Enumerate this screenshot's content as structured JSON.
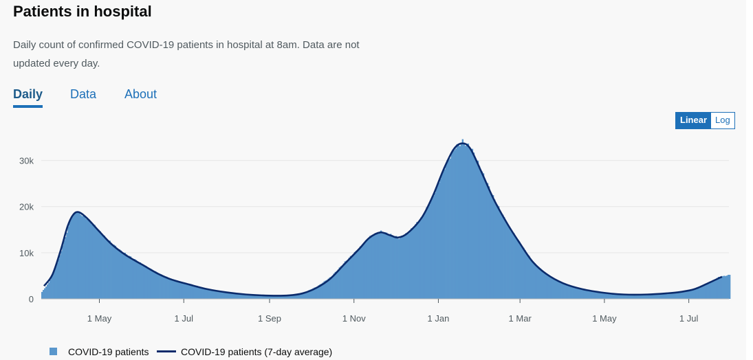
{
  "header": {
    "title": "Patients in hospital",
    "description": "Daily count of confirmed COVID-19 patients in hospital at 8am. Data are not updated every day."
  },
  "tabs": [
    {
      "label": "Daily",
      "active": true
    },
    {
      "label": "Data",
      "active": false
    },
    {
      "label": "About",
      "active": false
    }
  ],
  "scale_toggle": {
    "linear_label": "Linear",
    "log_label": "Log",
    "selected": "Linear"
  },
  "colors": {
    "bars": "#5a97cc",
    "line": "#0b2b6b",
    "accent": "#1d70b8",
    "grid": "#e6e6e6"
  },
  "chart_data": {
    "type": "bar",
    "xlabel": "",
    "ylabel": "",
    "ylim": [
      0,
      35000
    ],
    "yticks": [
      0,
      10000,
      20000,
      30000
    ],
    "ytick_labels": [
      "0",
      "10k",
      "20k",
      "30k"
    ],
    "x_range": [
      "2020-03-20",
      "2021-07-30"
    ],
    "xticks": [
      {
        "date": "2020-05-01",
        "label": "1 May"
      },
      {
        "date": "2020-07-01",
        "label": "1 Jul"
      },
      {
        "date": "2020-09-01",
        "label": "1 Sep"
      },
      {
        "date": "2020-11-01",
        "label": "1 Nov"
      },
      {
        "date": "2021-01-01",
        "label": "1 Jan"
      },
      {
        "date": "2021-03-01",
        "label": "1 Mar"
      },
      {
        "date": "2021-05-01",
        "label": "1 May"
      },
      {
        "date": "2021-07-01",
        "label": "1 Jul"
      }
    ],
    "grid": true,
    "legend_position": "bottom-left",
    "series": [
      {
        "name": "COVID-19 patients",
        "kind": "bar",
        "points": [
          [
            "2020-03-20",
            1500
          ],
          [
            "2020-03-25",
            3500
          ],
          [
            "2020-04-01",
            8500
          ],
          [
            "2020-04-06",
            13500
          ],
          [
            "2020-04-10",
            17500
          ],
          [
            "2020-04-14",
            18900
          ],
          [
            "2020-04-20",
            17800
          ],
          [
            "2020-04-27",
            15800
          ],
          [
            "2020-05-05",
            13200
          ],
          [
            "2020-05-15",
            10600
          ],
          [
            "2020-05-25",
            8700
          ],
          [
            "2020-06-05",
            6700
          ],
          [
            "2020-06-15",
            5100
          ],
          [
            "2020-06-25",
            3900
          ],
          [
            "2020-07-10",
            2800
          ],
          [
            "2020-07-20",
            1900
          ],
          [
            "2020-08-01",
            1300
          ],
          [
            "2020-08-15",
            900
          ],
          [
            "2020-09-01",
            700
          ],
          [
            "2020-09-15",
            800
          ],
          [
            "2020-09-25",
            1300
          ],
          [
            "2020-10-05",
            2700
          ],
          [
            "2020-10-15",
            4800
          ],
          [
            "2020-10-25",
            8000
          ],
          [
            "2020-11-05",
            11200
          ],
          [
            "2020-11-12",
            13500
          ],
          [
            "2020-11-20",
            14600
          ],
          [
            "2020-11-27",
            13900
          ],
          [
            "2020-12-03",
            13200
          ],
          [
            "2020-12-10",
            14400
          ],
          [
            "2020-12-20",
            17800
          ],
          [
            "2020-12-28",
            22500
          ],
          [
            "2021-01-05",
            28500
          ],
          [
            "2021-01-12",
            32600
          ],
          [
            "2021-01-18",
            34100
          ],
          [
            "2021-01-24",
            32800
          ],
          [
            "2021-02-01",
            27500
          ],
          [
            "2021-02-10",
            21500
          ],
          [
            "2021-02-20",
            15800
          ],
          [
            "2021-03-01",
            11800
          ],
          [
            "2021-03-10",
            7900
          ],
          [
            "2021-03-20",
            5200
          ],
          [
            "2021-04-01",
            3300
          ],
          [
            "2021-04-15",
            2100
          ],
          [
            "2021-05-01",
            1300
          ],
          [
            "2021-05-15",
            950
          ],
          [
            "2021-06-01",
            950
          ],
          [
            "2021-06-15",
            1200
          ],
          [
            "2021-06-25",
            1500
          ],
          [
            "2021-07-05",
            2200
          ],
          [
            "2021-07-15",
            3500
          ],
          [
            "2021-07-22",
            4700
          ],
          [
            "2021-07-30",
            5200
          ]
        ]
      },
      {
        "name": "COVID-19 patients (7-day average)",
        "kind": "line",
        "points": [
          [
            "2020-03-22",
            2800
          ],
          [
            "2020-03-28",
            5200
          ],
          [
            "2020-04-03",
            10500
          ],
          [
            "2020-04-08",
            15700
          ],
          [
            "2020-04-12",
            18200
          ],
          [
            "2020-04-16",
            18800
          ],
          [
            "2020-04-22",
            17500
          ],
          [
            "2020-05-01",
            14600
          ],
          [
            "2020-05-10",
            11800
          ],
          [
            "2020-05-20",
            9500
          ],
          [
            "2020-06-01",
            7400
          ],
          [
            "2020-06-12",
            5500
          ],
          [
            "2020-06-22",
            4200
          ],
          [
            "2020-07-05",
            3100
          ],
          [
            "2020-07-18",
            2100
          ],
          [
            "2020-08-01",
            1400
          ],
          [
            "2020-08-15",
            950
          ],
          [
            "2020-09-01",
            700
          ],
          [
            "2020-09-15",
            750
          ],
          [
            "2020-09-25",
            1200
          ],
          [
            "2020-10-05",
            2400
          ],
          [
            "2020-10-15",
            4400
          ],
          [
            "2020-10-25",
            7500
          ],
          [
            "2020-11-05",
            10900
          ],
          [
            "2020-11-12",
            13200
          ],
          [
            "2020-11-20",
            14400
          ],
          [
            "2020-11-27",
            13800
          ],
          [
            "2020-12-03",
            13300
          ],
          [
            "2020-12-10",
            14300
          ],
          [
            "2020-12-20",
            17600
          ],
          [
            "2020-12-28",
            22300
          ],
          [
            "2021-01-05",
            28200
          ],
          [
            "2021-01-12",
            32400
          ],
          [
            "2021-01-18",
            33700
          ],
          [
            "2021-01-24",
            32600
          ],
          [
            "2021-02-01",
            27600
          ],
          [
            "2021-02-10",
            21600
          ],
          [
            "2021-02-20",
            16200
          ],
          [
            "2021-03-01",
            12000
          ],
          [
            "2021-03-10",
            8100
          ],
          [
            "2021-03-20",
            5400
          ],
          [
            "2021-04-01",
            3400
          ],
          [
            "2021-04-15",
            2100
          ],
          [
            "2021-05-01",
            1300
          ],
          [
            "2021-05-15",
            950
          ],
          [
            "2021-06-01",
            950
          ],
          [
            "2021-06-15",
            1200
          ],
          [
            "2021-06-25",
            1500
          ],
          [
            "2021-07-05",
            2100
          ],
          [
            "2021-07-15",
            3400
          ],
          [
            "2021-07-25",
            4800
          ]
        ]
      }
    ]
  },
  "legend": [
    {
      "label": "COVID-19 patients"
    },
    {
      "label": "COVID-19 patients (7-day average)"
    }
  ]
}
